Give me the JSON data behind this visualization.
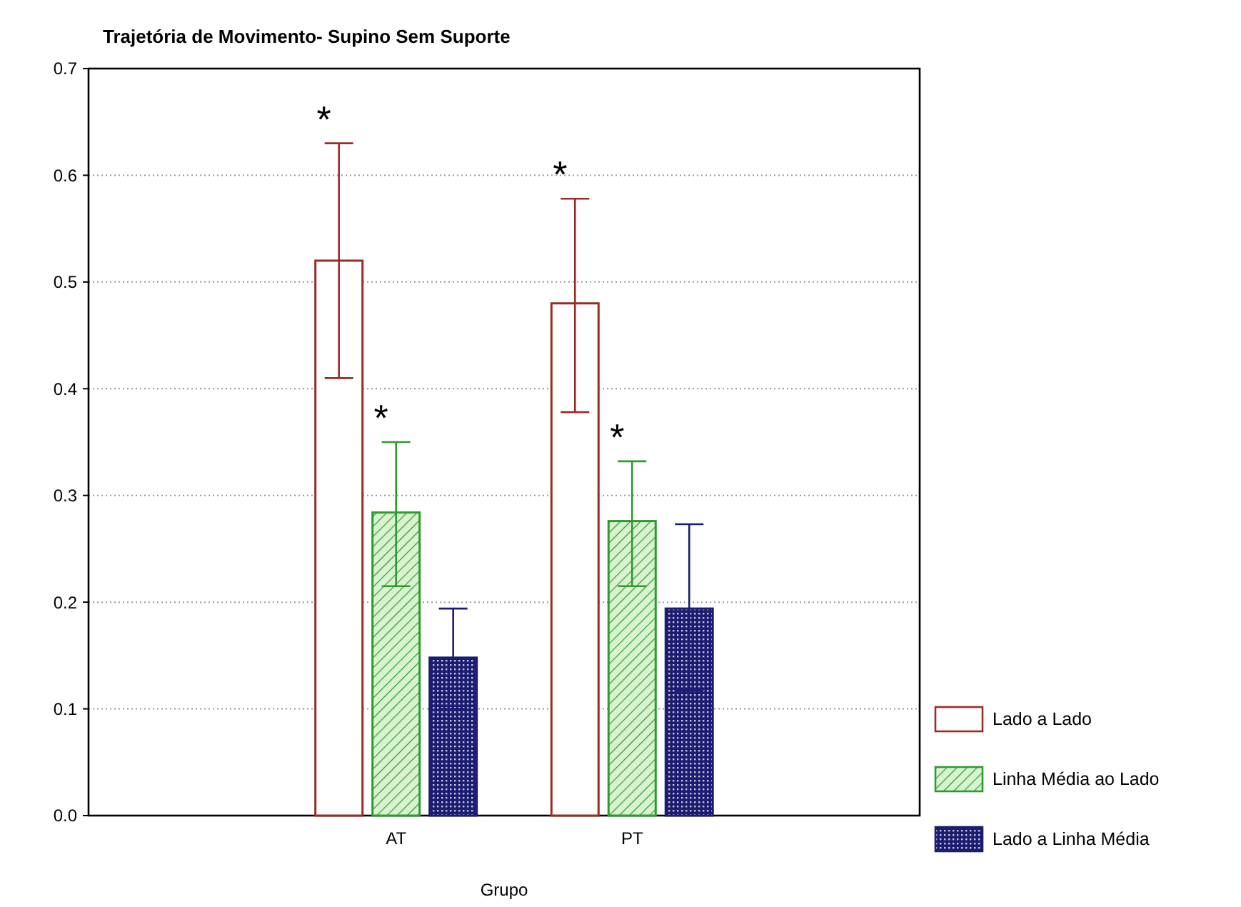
{
  "chart_data": {
    "type": "bar",
    "title": "Trajetória de Movimento- Supino Sem Suporte",
    "xlabel": "Grupo",
    "categories": [
      "AT",
      "PT"
    ],
    "series": [
      {
        "name": "Lado a Lado",
        "color": "#9b2c24",
        "values": [
          0.52,
          0.48
        ],
        "errors": [
          [
            0.41,
            0.63
          ],
          [
            0.378,
            0.578
          ]
        ]
      },
      {
        "name": "Linha Média ao Lado",
        "color": "#2e9b2e",
        "values": [
          0.284,
          0.276
        ],
        "errors": [
          [
            0.215,
            0.35
          ],
          [
            0.215,
            0.332
          ]
        ]
      },
      {
        "name": "Lado a Linha Média",
        "color": "#1c1c70",
        "values": [
          0.148,
          0.194
        ],
        "errors": [
          [
            0.1,
            0.194
          ],
          [
            0.117,
            0.273
          ]
        ]
      }
    ],
    "ylim": [
      0,
      0.7
    ],
    "yticks": [
      {
        "value": 0,
        "label": "0.0"
      },
      0.1,
      0.2,
      0.3,
      0.4,
      0.5,
      0.6,
      0.7
    ],
    "grid": "y",
    "legend": "bottom right",
    "annotations": [
      "*",
      "*",
      "*",
      "*"
    ]
  }
}
